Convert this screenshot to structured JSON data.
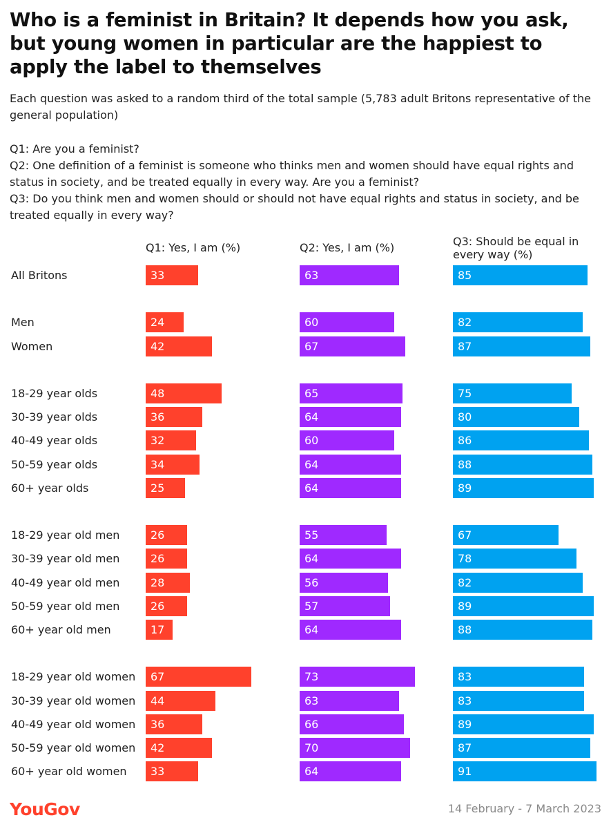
{
  "chart_data": {
    "type": "bar",
    "orientation": "horizontal",
    "title": "Who is a feminist in Britain? It depends how you ask, but young women in particular are the happiest to apply the label to themselves",
    "subtitle": "Each question was asked to a random third of the total sample (5,783 adult Britons representative of the general population)",
    "questions": [
      "Q1: Are you a feminist?",
      "Q2: One definition of a feminist is someone who thinks men and women should have equal rights and status in society, and be treated equally in every way. Are you a feminist?",
      "Q3: Do you think men and women should or should not have equal rights and status in society, and be treated equally in every way?"
    ],
    "xlim": [
      0,
      100
    ],
    "categories": [
      "All Britons",
      "Men",
      "Women",
      "18-29 year olds",
      "30-39 year olds",
      "40-49 year olds",
      "50-59 year olds",
      "60+ year olds",
      "18-29 year old men",
      "30-39 year old men",
      "40-49 year old men",
      "50-59 year old men",
      "60+ year old men",
      "18-29 year old women",
      "30-39 year old women",
      "40-49 year old women",
      "50-59 year old women",
      "60+ year old women"
    ],
    "groups": [
      [
        0
      ],
      [
        1,
        2
      ],
      [
        3,
        4,
        5,
        6,
        7
      ],
      [
        8,
        9,
        10,
        11,
        12
      ],
      [
        13,
        14,
        15,
        16,
        17
      ]
    ],
    "series": [
      {
        "name": "Q1: Yes, I am (%)",
        "color": "#ff412c",
        "values": [
          33,
          24,
          42,
          48,
          36,
          32,
          34,
          25,
          26,
          26,
          28,
          26,
          17,
          67,
          44,
          36,
          42,
          33
        ]
      },
      {
        "name": "Q2: Yes, I am (%)",
        "color": "#9f29ff",
        "values": [
          63,
          60,
          67,
          65,
          64,
          60,
          64,
          64,
          55,
          64,
          56,
          57,
          64,
          73,
          63,
          66,
          70,
          64
        ]
      },
      {
        "name": "Q3: Should be equal in every way (%)",
        "color": "#00a2f0",
        "values": [
          85,
          82,
          87,
          75,
          80,
          86,
          88,
          89,
          67,
          78,
          82,
          89,
          88,
          83,
          83,
          89,
          87,
          91
        ]
      }
    ]
  },
  "footer": {
    "brand": "YouGov",
    "date_range": "14 February - 7 March 2023"
  }
}
